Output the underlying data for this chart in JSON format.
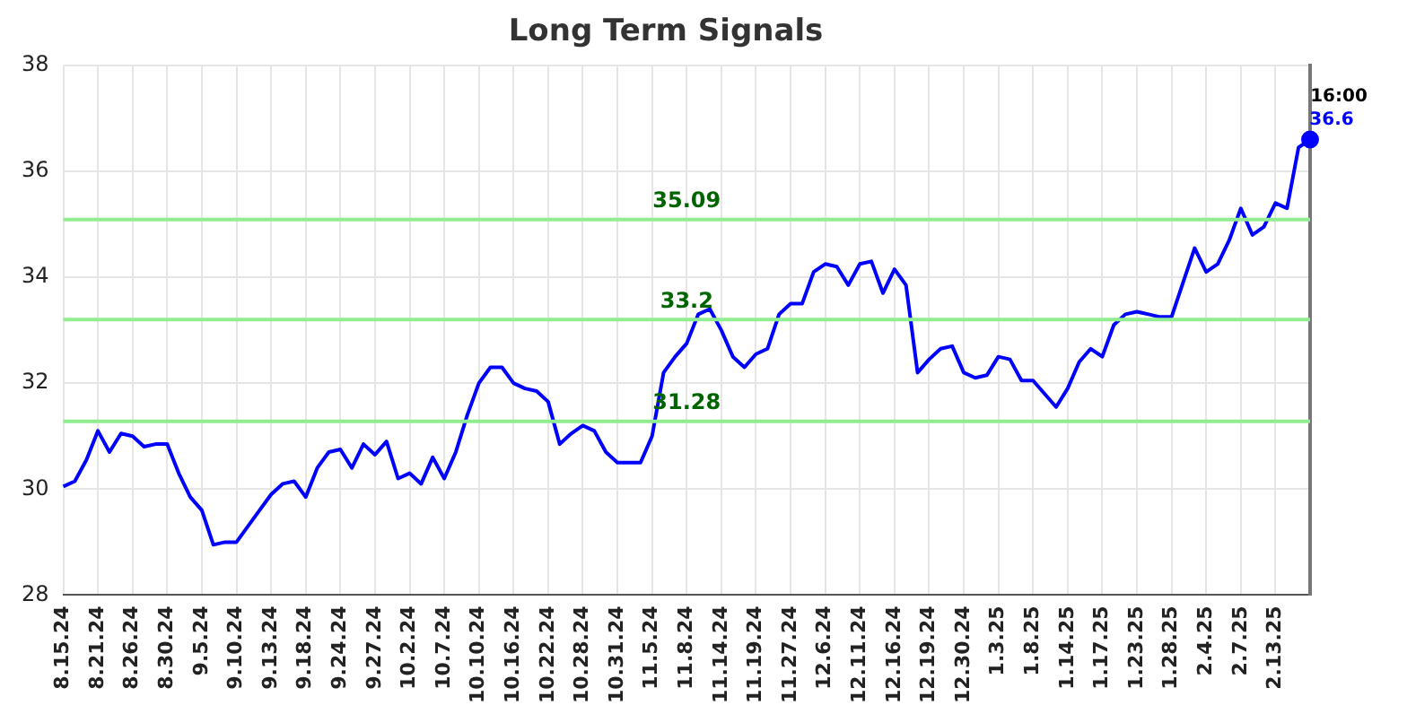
{
  "chart_data": {
    "type": "line",
    "title": "Long Term Signals",
    "categories": [
      "8.15.24",
      null,
      null,
      "8.21.24",
      null,
      null,
      "8.26.24",
      null,
      null,
      "8.30.24",
      null,
      null,
      "9.5.24",
      null,
      null,
      "9.10.24",
      null,
      null,
      "9.13.24",
      null,
      null,
      "9.18.24",
      null,
      null,
      "9.24.24",
      null,
      null,
      "9.27.24",
      null,
      null,
      "10.2.24",
      null,
      null,
      "10.7.24",
      null,
      null,
      "10.10.24",
      null,
      null,
      "10.16.24",
      null,
      null,
      "10.22.24",
      null,
      null,
      "10.28.24",
      null,
      null,
      "10.31.24",
      null,
      null,
      "11.5.24",
      null,
      null,
      "11.8.24",
      null,
      null,
      "11.14.24",
      null,
      null,
      "11.19.24",
      null,
      null,
      "11.27.24",
      null,
      null,
      "12.6.24",
      null,
      null,
      "12.11.24",
      null,
      null,
      "12.16.24",
      null,
      null,
      "12.19.24",
      null,
      null,
      "12.30.24",
      null,
      null,
      "1.3.25",
      null,
      null,
      "1.8.25",
      null,
      null,
      "1.14.25",
      null,
      null,
      "1.17.25",
      null,
      null,
      "1.23.25",
      null,
      null,
      "1.28.25",
      null,
      null,
      "2.4.25",
      null,
      null,
      "2.7.25",
      null,
      null,
      "2.13.25",
      null,
      null,
      null
    ],
    "series": [
      {
        "color": "#0000ff",
        "values": [
          30.05,
          30.15,
          30.55,
          31.1,
          30.7,
          31.05,
          31.0,
          30.8,
          30.85,
          30.85,
          30.3,
          29.85,
          29.6,
          28.95,
          29.0,
          29.0,
          29.3,
          29.6,
          29.9,
          30.1,
          30.15,
          29.85,
          30.4,
          30.7,
          30.75,
          30.4,
          30.85,
          30.65,
          30.9,
          30.2,
          30.3,
          30.1,
          30.6,
          30.2,
          30.7,
          31.4,
          32.0,
          32.3,
          32.3,
          32.0,
          31.9,
          31.85,
          31.65,
          30.85,
          31.05,
          31.2,
          31.1,
          30.7,
          30.5,
          30.5,
          30.5,
          31.0,
          32.2,
          32.5,
          32.75,
          33.3,
          33.4,
          33.0,
          32.5,
          32.3,
          32.55,
          32.65,
          33.3,
          33.5,
          33.5,
          34.1,
          34.25,
          34.2,
          33.85,
          34.25,
          34.3,
          33.7,
          34.15,
          33.85,
          32.2,
          32.45,
          32.65,
          32.7,
          32.2,
          32.1,
          32.15,
          32.5,
          32.45,
          32.05,
          32.05,
          31.8,
          31.55,
          31.9,
          32.4,
          32.65,
          32.5,
          33.1,
          33.3,
          33.35,
          33.3,
          33.25,
          33.25,
          33.9,
          34.55,
          34.1,
          34.25,
          34.7,
          35.3,
          34.8,
          34.95,
          35.4,
          35.3,
          36.45,
          36.6
        ],
        "value_labels": [
          null,
          null,
          null,
          null,
          null,
          null,
          null,
          null,
          null,
          null,
          null,
          null,
          null,
          null,
          null,
          null,
          null,
          null,
          null,
          null,
          null,
          null,
          null,
          null,
          null,
          null,
          null,
          null,
          null,
          null,
          null,
          null,
          null,
          null,
          null,
          null,
          null,
          null,
          null,
          null,
          null,
          null,
          null,
          null,
          null,
          null,
          null,
          null,
          null,
          null,
          null,
          null,
          null,
          null,
          null,
          null,
          null,
          null,
          null,
          null,
          null,
          null,
          null,
          null,
          null,
          null,
          null,
          null,
          null,
          null,
          null,
          null,
          null,
          null,
          null,
          null,
          null,
          null,
          null,
          null,
          null,
          null,
          null,
          null,
          null,
          null,
          null,
          null,
          null,
          null,
          null,
          null,
          null,
          null,
          null,
          null,
          null,
          null,
          null,
          null,
          null,
          null,
          null,
          null,
          null,
          null,
          null,
          null,
          "36.6"
        ]
      }
    ],
    "annotations": [
      "16:00"
    ],
    "ylim": [
      28,
      38
    ],
    "yticks": [
      28,
      30,
      32,
      34,
      36,
      38
    ],
    "ref_lines": [
      {
        "axis": "y",
        "value": 35.09,
        "label": "35.09",
        "color": "#90ee90"
      },
      {
        "axis": "y",
        "value": 33.2,
        "label": "33.2",
        "color": "#90ee90"
      },
      {
        "axis": "y",
        "value": 31.28,
        "label": "31.28",
        "color": "#90ee90"
      }
    ],
    "grid": true,
    "legend": false,
    "marker": "none",
    "line_style": "solid"
  }
}
